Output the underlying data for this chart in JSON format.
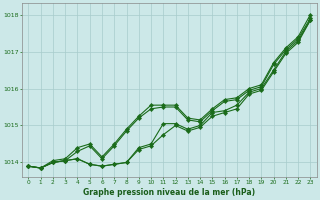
{
  "x": [
    0,
    1,
    2,
    3,
    4,
    5,
    6,
    7,
    8,
    9,
    10,
    11,
    12,
    13,
    14,
    15,
    16,
    17,
    18,
    19,
    20,
    21,
    22,
    23
  ],
  "line1": [
    1013.9,
    1013.85,
    1014.0,
    1014.05,
    1014.1,
    1013.95,
    1013.9,
    1013.95,
    1014.0,
    1014.35,
    1014.45,
    1014.75,
    1015.0,
    1014.85,
    1014.95,
    1015.25,
    1015.35,
    1015.45,
    1015.85,
    1015.95,
    1016.45,
    1016.95,
    1017.25,
    1017.85
  ],
  "line2": [
    1013.9,
    1013.85,
    1014.0,
    1014.05,
    1014.1,
    1013.95,
    1013.9,
    1013.95,
    1014.0,
    1014.4,
    1014.5,
    1015.05,
    1015.05,
    1014.9,
    1015.0,
    1015.35,
    1015.4,
    1015.55,
    1015.9,
    1016.0,
    1016.5,
    1017.0,
    1017.3,
    1017.85
  ],
  "line3": [
    1013.9,
    1013.85,
    1014.0,
    1014.05,
    1014.3,
    1014.45,
    1014.1,
    1014.45,
    1014.85,
    1015.2,
    1015.45,
    1015.5,
    1015.5,
    1015.15,
    1015.1,
    1015.4,
    1015.65,
    1015.7,
    1015.95,
    1016.05,
    1016.65,
    1017.05,
    1017.35,
    1017.9
  ],
  "line4": [
    1013.9,
    1013.85,
    1014.05,
    1014.1,
    1014.4,
    1014.5,
    1014.15,
    1014.5,
    1014.9,
    1015.25,
    1015.55,
    1015.55,
    1015.55,
    1015.2,
    1015.15,
    1015.45,
    1015.7,
    1015.75,
    1016.0,
    1016.1,
    1016.7,
    1017.1,
    1017.4,
    1018.0
  ],
  "ylim": [
    1013.6,
    1018.3
  ],
  "yticks": [
    1014,
    1015,
    1016,
    1017,
    1018
  ],
  "xticks": [
    0,
    1,
    2,
    3,
    4,
    5,
    6,
    7,
    8,
    9,
    10,
    11,
    12,
    13,
    14,
    15,
    16,
    17,
    18,
    19,
    20,
    21,
    22,
    23
  ],
  "line_color": "#1a6b1a",
  "bg_color": "#cce8e8",
  "grid_color": "#a8cccc",
  "xlabel": "Graphe pression niveau de la mer (hPa)",
  "xlabel_color": "#1a5e1a",
  "tick_color": "#1a6b1a",
  "markersize": 2.2,
  "linewidth": 0.8
}
